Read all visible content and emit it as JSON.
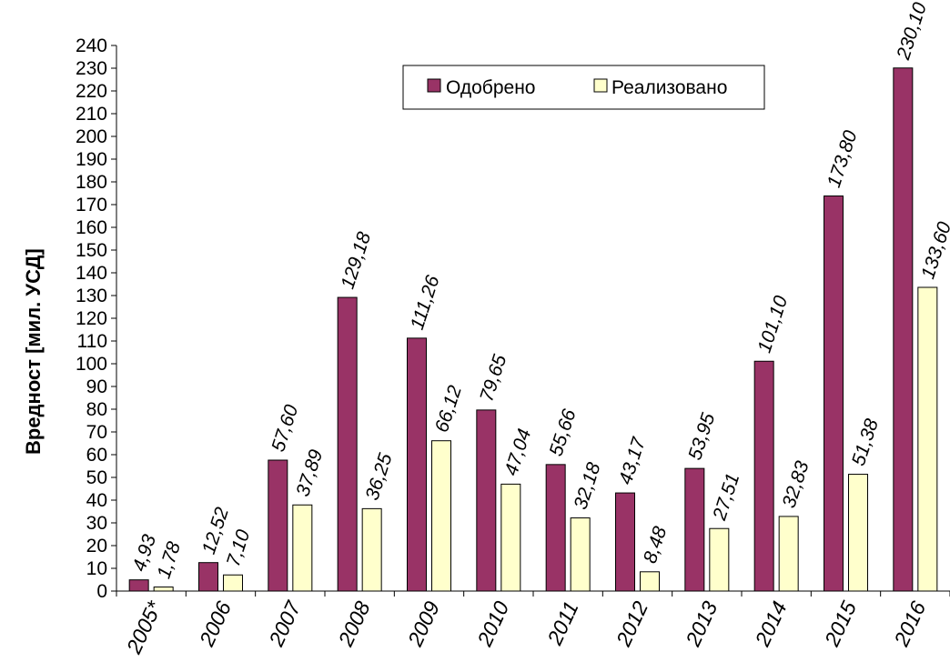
{
  "chart_data": {
    "type": "bar",
    "title": "",
    "xlabel": "",
    "ylabel": "Вредност [мил. УСД]",
    "ylim": [
      0,
      240
    ],
    "ytick_step": 10,
    "grid": false,
    "legend_position": "top-right",
    "categories": [
      "2005*",
      "2006",
      "2007",
      "2008",
      "2009",
      "2010",
      "2011",
      "2012",
      "2013",
      "2014",
      "2015",
      "2016"
    ],
    "series": [
      {
        "name": "Одобрено",
        "color": "#993366",
        "values": [
          4.93,
          12.52,
          57.6,
          129.18,
          111.26,
          79.65,
          55.66,
          43.17,
          53.95,
          101.1,
          173.8,
          230.1
        ],
        "labels": [
          "4,93",
          "12,52",
          "57,60",
          "129,18",
          "111,26",
          "79,65",
          "55,66",
          "43,17",
          "53,95",
          "101,10",
          "173,80",
          "230,10"
        ]
      },
      {
        "name": "Реализовано",
        "color": "#FFFFCC",
        "values": [
          1.78,
          7.1,
          37.89,
          36.25,
          66.12,
          47.04,
          32.18,
          8.48,
          27.51,
          32.83,
          51.38,
          133.6
        ],
        "labels": [
          "1,78",
          "7,10",
          "37,89",
          "36,25",
          "66,12",
          "47,04",
          "32,18",
          "8,48",
          "27,51",
          "32,83",
          "51,38",
          "133,60"
        ]
      }
    ]
  }
}
